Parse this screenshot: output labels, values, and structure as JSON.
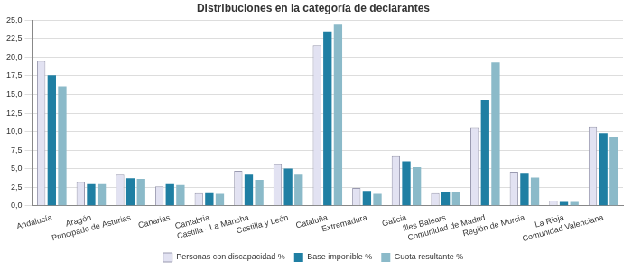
{
  "chart_data": {
    "type": "bar",
    "title": "Distribuciones en la categoría de declarantes",
    "categories": [
      "Andalucía",
      "Aragón",
      "Principado de Asturias",
      "Canarias",
      "Cantabria",
      "Castilla - La Mancha",
      "Castilla y León",
      "Cataluña",
      "Extremadura",
      "Galicia",
      "Illes Balears",
      "Comunidad de Madrid",
      "Región de Murcia",
      "La Rioja",
      "Comunidad Valenciana"
    ],
    "series": [
      {
        "name": "Personas con discapacidad %",
        "color": "#e2e2f2",
        "values": [
          19.5,
          3.2,
          4.2,
          2.6,
          1.7,
          4.7,
          5.6,
          21.6,
          2.4,
          6.7,
          1.7,
          10.5,
          4.6,
          0.7,
          10.6
        ]
      },
      {
        "name": "Base imponible %",
        "color": "#1f7fa3",
        "values": [
          17.6,
          2.9,
          3.7,
          2.9,
          1.7,
          4.2,
          5.0,
          23.5,
          2.0,
          6.0,
          1.9,
          14.2,
          4.3,
          0.5,
          9.8
        ]
      },
      {
        "name": "Cuota resultante %",
        "color": "#8bbac9",
        "values": [
          16.1,
          2.9,
          3.6,
          2.8,
          1.6,
          3.5,
          4.2,
          24.4,
          1.6,
          5.2,
          1.9,
          19.3,
          3.8,
          0.5,
          9.2
        ]
      }
    ],
    "ylim": [
      0,
      25
    ],
    "yticks": [
      {
        "value": 0,
        "label": "0,0"
      },
      {
        "value": 2.5,
        "label": "2,5"
      },
      {
        "value": 5,
        "label": "5,0"
      },
      {
        "value": 7.5,
        "label": "7,5"
      },
      {
        "value": 10,
        "label": "10,0"
      },
      {
        "value": 12.5,
        "label": "12,5"
      },
      {
        "value": 15,
        "label": "15,0"
      },
      {
        "value": 17.5,
        "label": "17,5"
      },
      {
        "value": 20,
        "label": "20,0"
      },
      {
        "value": 22.5,
        "label": "22,5"
      },
      {
        "value": 25,
        "label": "25,0"
      }
    ],
    "grid": true,
    "legend": "bottom"
  }
}
